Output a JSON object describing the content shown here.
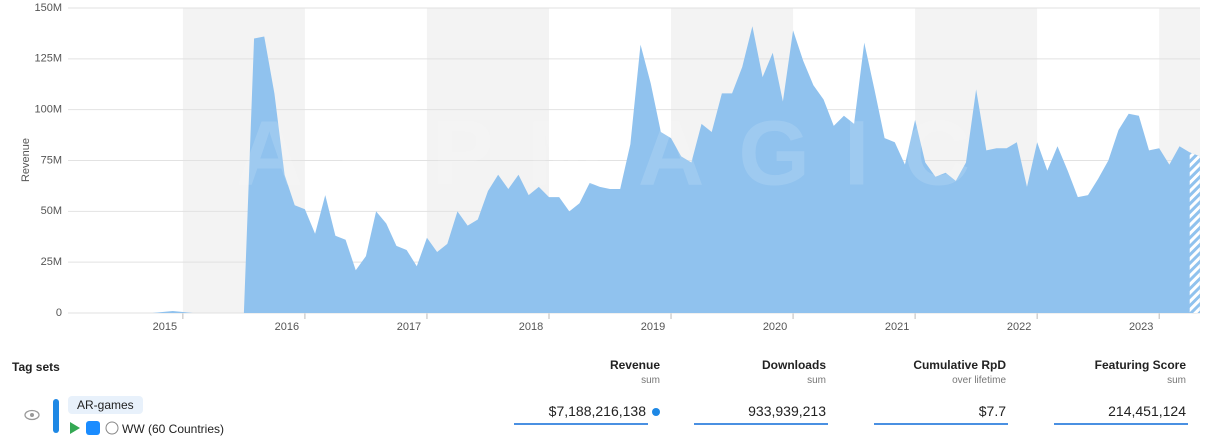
{
  "chart_data": {
    "type": "area",
    "y_label": "Revenue",
    "watermark": "APPMAGIC",
    "color": "#90c2ee",
    "categories": [
      null,
      null,
      null,
      null,
      null,
      null,
      null,
      null,
      null,
      null,
      null,
      "2015",
      null,
      null,
      null,
      null,
      null,
      null,
      null,
      null,
      null,
      null,
      null,
      "2016",
      null,
      null,
      null,
      null,
      null,
      null,
      null,
      null,
      null,
      null,
      null,
      "2017",
      null,
      null,
      null,
      null,
      null,
      null,
      null,
      null,
      null,
      null,
      null,
      "2018",
      null,
      null,
      null,
      null,
      null,
      null,
      null,
      null,
      null,
      null,
      null,
      "2019",
      null,
      null,
      null,
      null,
      null,
      null,
      null,
      null,
      null,
      null,
      null,
      "2020",
      null,
      null,
      null,
      null,
      null,
      null,
      null,
      null,
      null,
      null,
      null,
      "2021",
      null,
      null,
      null,
      null,
      null,
      null,
      null,
      null,
      null,
      null,
      null,
      "2022",
      null,
      null,
      null,
      null,
      null,
      null,
      null,
      null,
      null,
      null,
      null,
      "2023",
      null,
      null,
      null,
      null
    ],
    "values": [
      0,
      0,
      0,
      0,
      0,
      0,
      0,
      0,
      0,
      0.5,
      1,
      0.5,
      0,
      0,
      0,
      0,
      0,
      0,
      135,
      136,
      108,
      68,
      53,
      51,
      39,
      58,
      38,
      36,
      21,
      28,
      50,
      44,
      33,
      31,
      23,
      37,
      30,
      34,
      50,
      43,
      46,
      60,
      68,
      61,
      68,
      58,
      62,
      57,
      57,
      50,
      54,
      64,
      62,
      61,
      61,
      83,
      132,
      113,
      89,
      86,
      77,
      74,
      93,
      89,
      108,
      108,
      121,
      141,
      116,
      128,
      104,
      139,
      124,
      112,
      105,
      92,
      97,
      93,
      133,
      110,
      86,
      84,
      73,
      95,
      74,
      67,
      69,
      65,
      74,
      110,
      80,
      81,
      81,
      84,
      62,
      84,
      70,
      82,
      70,
      57,
      58,
      66,
      75,
      90,
      98,
      97,
      80,
      81,
      73,
      82,
      79,
      77
    ],
    "ylim": [
      0,
      150
    ],
    "yticks": [
      {
        "value": 0,
        "label": "0"
      },
      {
        "value": 25,
        "label": "25M"
      },
      {
        "value": 50,
        "label": "50M"
      },
      {
        "value": 75,
        "label": "75M"
      },
      {
        "value": 100,
        "label": "100M"
      },
      {
        "value": 125,
        "label": "125M"
      },
      {
        "value": 150,
        "label": "150M"
      }
    ],
    "grid": true
  },
  "table": {
    "title": "Tag sets",
    "columns": [
      {
        "name": "Revenue",
        "sub": "sum"
      },
      {
        "name": "Downloads",
        "sub": "sum"
      },
      {
        "name": "Cumulative RpD",
        "sub": "over lifetime"
      },
      {
        "name": "Featuring Score",
        "sub": "sum"
      }
    ],
    "rows": [
      {
        "tag": "AR-games",
        "region": "WW (60 Countries)",
        "cells": [
          "$7,188,216,138",
          "933,939,213",
          "$7.7",
          "214,451,124"
        ]
      }
    ]
  }
}
